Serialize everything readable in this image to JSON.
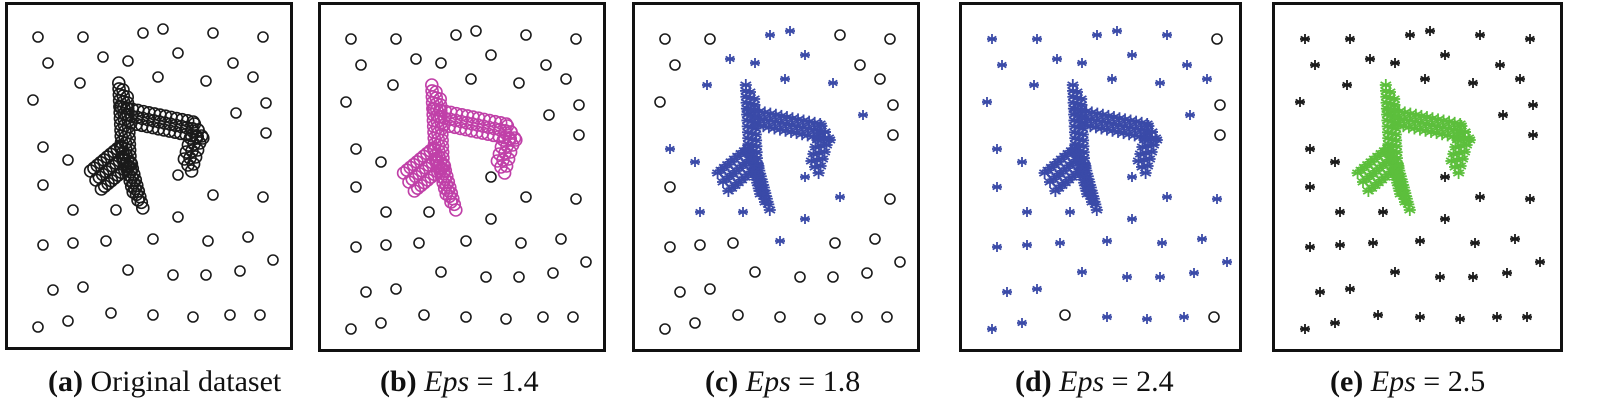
{
  "figure": {
    "panels": [
      {
        "tag": "(a)",
        "text": " Original dataset",
        "eps_label": "",
        "eps_value": ""
      },
      {
        "tag": "(b)",
        "text": "",
        "eps_label": "Eps",
        "eps_value": " = 1.4"
      },
      {
        "tag": "(c)",
        "text": "",
        "eps_label": "Eps",
        "eps_value": " = 1.8"
      },
      {
        "tag": "(d)",
        "text": "",
        "eps_label": "Eps",
        "eps_value": " = 2.4"
      },
      {
        "tag": "(e)",
        "text": "",
        "eps_label": "Eps",
        "eps_value": " = 2.5"
      }
    ]
  },
  "colors": {
    "noise": "#1a1a1a",
    "cluster_magenta": "#c040a8",
    "cluster_blue": "#3a4aa8",
    "cluster_green": "#5cbf3c",
    "frame": "#111111"
  },
  "chart_data": [
    {
      "type": "scatter",
      "title": "Original dataset",
      "series": [
        {
          "marker": "circle",
          "color": "#1a1a1a",
          "points": "all"
        }
      ]
    },
    {
      "type": "scatter",
      "title": "Eps = 1.4",
      "series": [
        {
          "marker": "circle",
          "color": "#c040a8",
          "points": "cluster"
        },
        {
          "marker": "circle",
          "color": "#1a1a1a",
          "points": "background"
        }
      ]
    },
    {
      "type": "scatter",
      "title": "Eps = 1.8",
      "series": [
        {
          "marker": "asterisk",
          "color": "#3a4aa8",
          "points": "cluster + nearby points"
        },
        {
          "marker": "circle",
          "color": "#1a1a1a",
          "points": "remaining points"
        }
      ]
    },
    {
      "type": "scatter",
      "title": "Eps = 2.4",
      "series": [
        {
          "marker": "asterisk",
          "color": "#3a4aa8",
          "points": "almost all points"
        },
        {
          "marker": "circle",
          "color": "#1a1a1a",
          "points": "few edge points"
        }
      ]
    },
    {
      "type": "scatter",
      "title": "Eps = 2.5",
      "series": [
        {
          "marker": "asterisk",
          "color": "#5cbf3c",
          "points": "all"
        }
      ]
    }
  ]
}
